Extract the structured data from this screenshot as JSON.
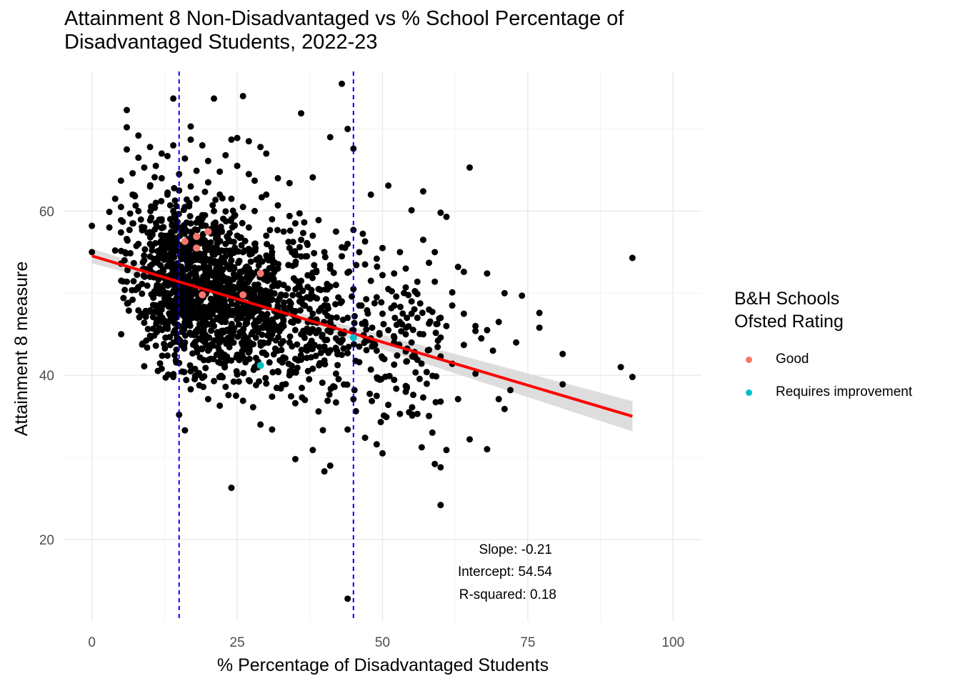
{
  "chart_data": {
    "type": "scatter",
    "title": "Attainment 8 Non-Disadvantaged vs % School Percentage of\nDisadvantaged Students, 2022-23",
    "xlabel": "% Percentage of Disadvantaged Students",
    "ylabel": "Attainment 8 measure",
    "xlim": [
      -5,
      105
    ],
    "ylim": [
      10,
      77
    ],
    "x_ticks": [
      "0",
      "25",
      "50",
      "75",
      "100"
    ],
    "y_ticks": [
      "20",
      "40",
      "60"
    ],
    "grid": true,
    "vlines": [
      15,
      45
    ],
    "regression": {
      "slope": -0.21,
      "intercept": 54.54,
      "x_range": [
        0,
        93
      ]
    },
    "annotations": [
      "Slope: -0.21",
      "Intercept: 54.54",
      "R-squared: 0.18"
    ],
    "legend": {
      "title": "B&H Schools\nOfsted Rating",
      "placement": "right",
      "entries": [
        {
          "name": "Good",
          "color": "#F8766D"
        },
        {
          "name": "Requires improvement",
          "color": "#00BFC4"
        }
      ]
    },
    "series": [
      {
        "name": "Good",
        "color": "#F8766D",
        "points": [
          [
            16,
            56.3
          ],
          [
            18,
            56.9
          ],
          [
            18,
            55.5
          ],
          [
            20,
            57.5
          ],
          [
            19,
            49.8
          ],
          [
            26,
            49.8
          ],
          [
            29,
            52.4
          ]
        ]
      },
      {
        "name": "Requires improvement",
        "color": "#00BFC4",
        "points": [
          [
            29,
            41.2
          ],
          [
            45,
            44.6
          ]
        ]
      }
    ],
    "background_points": [
      [
        0,
        58.2
      ],
      [
        0,
        55.0
      ],
      [
        5,
        60.5
      ],
      [
        6,
        72.3
      ],
      [
        6,
        70.2
      ],
      [
        8,
        69.2
      ],
      [
        14,
        73.7
      ],
      [
        17,
        70.3
      ],
      [
        17,
        68.7
      ],
      [
        21,
        73.7
      ],
      [
        24,
        68.7
      ],
      [
        25,
        68.9
      ],
      [
        26,
        74.0
      ],
      [
        27,
        68.5
      ],
      [
        29,
        67.8
      ],
      [
        30,
        67.0
      ],
      [
        36,
        71.9
      ],
      [
        41,
        69.0
      ],
      [
        43,
        75.5
      ],
      [
        44,
        70.0
      ],
      [
        45,
        67.6
      ],
      [
        38,
        64.1
      ],
      [
        34,
        63.4
      ],
      [
        48,
        62.0
      ],
      [
        51,
        63.1
      ],
      [
        57,
        62.4
      ],
      [
        65,
        65.3
      ],
      [
        55,
        60.1
      ],
      [
        60,
        59.8
      ],
      [
        61,
        59.3
      ],
      [
        93,
        54.3
      ],
      [
        81,
        42.6
      ],
      [
        81,
        38.9
      ],
      [
        91,
        41.0
      ],
      [
        93,
        39.8
      ],
      [
        77,
        47.6
      ],
      [
        77,
        45.8
      ],
      [
        74,
        49.7
      ],
      [
        71,
        50.0
      ],
      [
        68,
        52.4
      ],
      [
        72,
        38.2
      ],
      [
        71,
        35.9
      ],
      [
        70,
        37.1
      ],
      [
        65,
        32.2
      ],
      [
        68,
        31.0
      ],
      [
        61,
        30.9
      ],
      [
        59,
        29.2
      ],
      [
        60,
        28.8
      ],
      [
        60,
        24.2
      ],
      [
        44,
        12.8
      ],
      [
        24,
        26.3
      ],
      [
        35,
        29.8
      ],
      [
        40,
        28.3
      ],
      [
        41,
        29.0
      ],
      [
        16,
        33.3
      ],
      [
        15,
        35.2
      ],
      [
        29,
        34.0
      ],
      [
        31,
        33.4
      ],
      [
        38,
        30.9
      ],
      [
        44,
        33.4
      ],
      [
        47,
        32.4
      ],
      [
        49,
        31.6
      ],
      [
        50,
        30.5
      ],
      [
        53,
        35.3
      ],
      [
        56,
        35.3
      ],
      [
        9,
        41.1
      ],
      [
        12,
        40.8
      ],
      [
        14,
        39.8
      ],
      [
        17,
        38.3
      ],
      [
        20,
        37.1
      ],
      [
        22,
        36.3
      ],
      [
        26,
        36.9
      ],
      [
        31,
        37.4
      ],
      [
        35,
        36.6
      ],
      [
        39,
        35.6
      ],
      [
        42,
        36.7
      ],
      [
        45,
        37.1
      ],
      [
        49,
        37.5
      ],
      [
        51,
        36.4
      ],
      [
        54,
        38.0
      ],
      [
        57,
        37.3
      ],
      [
        60,
        36.8
      ],
      [
        63,
        37.1
      ],
      [
        66,
        40.2
      ],
      [
        62,
        41.4
      ],
      [
        64,
        43.7
      ],
      [
        66,
        45.4
      ],
      [
        58,
        46.3
      ],
      [
        55,
        47.5
      ],
      [
        60,
        44.6
      ],
      [
        59,
        51.4
      ],
      [
        63,
        53.2
      ],
      [
        64,
        52.6
      ],
      [
        62,
        50.1
      ],
      [
        58,
        53.7
      ],
      [
        52,
        52.4
      ],
      [
        54,
        50.7
      ],
      [
        56,
        49.9
      ],
      [
        50,
        52.2
      ],
      [
        47,
        56.3
      ],
      [
        49,
        54.2
      ],
      [
        45,
        57.7
      ],
      [
        43,
        55.6
      ],
      [
        41,
        53.4
      ],
      [
        39,
        58.9
      ],
      [
        37,
        56.1
      ],
      [
        34,
        59.4
      ],
      [
        32,
        60.7
      ],
      [
        30,
        62.0
      ],
      [
        27,
        64.5
      ],
      [
        23,
        66.8
      ],
      [
        20,
        66.1
      ],
      [
        18,
        64.9
      ],
      [
        16,
        66.4
      ],
      [
        13,
        66.7
      ],
      [
        11,
        65.5
      ],
      [
        9,
        65.3
      ],
      [
        7,
        64.6
      ],
      [
        5,
        63.7
      ],
      [
        4,
        61.5
      ],
      [
        3,
        59.9
      ],
      [
        3,
        58.0
      ],
      [
        5,
        57.4
      ],
      [
        6,
        56.6
      ],
      [
        4,
        55.2
      ],
      [
        5,
        53.6
      ],
      [
        6,
        51.4
      ],
      [
        7,
        49.2
      ],
      [
        8,
        47.9
      ],
      [
        9,
        46.4
      ],
      [
        10,
        44.8
      ],
      [
        11,
        43.6
      ],
      [
        13,
        42.4
      ],
      [
        15,
        41.5
      ],
      [
        17,
        40.5
      ],
      [
        19,
        39.7
      ],
      [
        21,
        39.3
      ],
      [
        23,
        38.6
      ],
      [
        25,
        40.1
      ],
      [
        27,
        39.4
      ],
      [
        28,
        41.0
      ],
      [
        30,
        39.0
      ],
      [
        32,
        40.5
      ],
      [
        34,
        40.0
      ],
      [
        36,
        41.9
      ],
      [
        38,
        40.8
      ],
      [
        40,
        41.8
      ],
      [
        42,
        40.2
      ],
      [
        44,
        42.7
      ],
      [
        46,
        41.6
      ],
      [
        48,
        40.7
      ],
      [
        50,
        42.1
      ],
      [
        52,
        41.3
      ],
      [
        54,
        42.9
      ],
      [
        56,
        41.9
      ],
      [
        58,
        43.1
      ],
      [
        60,
        42.3
      ],
      [
        7,
        58.5
      ],
      [
        8,
        56.0
      ],
      [
        9,
        54.0
      ],
      [
        10,
        52.0
      ],
      [
        11,
        50.0
      ],
      [
        12,
        48.0
      ],
      [
        13,
        46.0
      ],
      [
        14,
        44.0
      ],
      [
        7,
        62.0
      ],
      [
        8,
        60.0
      ],
      [
        9,
        58.0
      ],
      [
        10,
        56.0
      ],
      [
        11,
        54.0
      ],
      [
        12,
        52.0
      ],
      [
        13,
        50.0
      ],
      [
        14,
        48.0
      ],
      [
        15,
        46.0
      ],
      [
        16,
        44.0
      ],
      [
        10,
        63.0
      ],
      [
        11,
        61.0
      ],
      [
        12,
        59.0
      ],
      [
        13,
        57.0
      ],
      [
        14,
        55.0
      ],
      [
        15,
        53.0
      ],
      [
        16,
        51.0
      ],
      [
        17,
        49.0
      ],
      [
        18,
        47.0
      ],
      [
        19,
        45.0
      ],
      [
        20,
        43.0
      ],
      [
        12,
        64.0
      ],
      [
        13,
        62.0
      ],
      [
        14,
        60.0
      ],
      [
        15,
        58.0
      ],
      [
        16,
        56.0
      ],
      [
        17,
        54.0
      ],
      [
        18,
        52.0
      ],
      [
        19,
        50.0
      ],
      [
        20,
        48.0
      ],
      [
        21,
        46.0
      ],
      [
        22,
        44.0
      ],
      [
        23,
        42.0
      ],
      [
        15,
        62.5
      ],
      [
        16,
        60.5
      ],
      [
        17,
        58.5
      ],
      [
        18,
        56.5
      ],
      [
        19,
        54.5
      ],
      [
        20,
        52.5
      ],
      [
        21,
        50.5
      ],
      [
        22,
        48.5
      ],
      [
        23,
        46.5
      ],
      [
        24,
        44.5
      ],
      [
        25,
        42.5
      ],
      [
        18,
        61.5
      ],
      [
        19,
        59.5
      ],
      [
        20,
        57.5
      ],
      [
        21,
        55.5
      ],
      [
        22,
        53.5
      ],
      [
        23,
        51.5
      ],
      [
        24,
        49.5
      ],
      [
        25,
        47.5
      ],
      [
        26,
        45.5
      ],
      [
        27,
        43.5
      ],
      [
        21,
        60.0
      ],
      [
        22,
        58.0
      ],
      [
        23,
        56.0
      ],
      [
        24,
        54.0
      ],
      [
        25,
        52.0
      ],
      [
        26,
        50.0
      ],
      [
        27,
        48.0
      ],
      [
        28,
        46.0
      ],
      [
        29,
        44.0
      ],
      [
        30,
        42.5
      ],
      [
        24,
        59.0
      ],
      [
        25,
        57.0
      ],
      [
        26,
        55.0
      ],
      [
        27,
        53.0
      ],
      [
        28,
        51.0
      ],
      [
        29,
        49.0
      ],
      [
        30,
        47.0
      ],
      [
        31,
        45.0
      ],
      [
        32,
        43.0
      ],
      [
        27,
        58.0
      ],
      [
        28,
        56.0
      ],
      [
        29,
        54.0
      ],
      [
        30,
        52.0
      ],
      [
        31,
        50.0
      ],
      [
        32,
        48.0
      ],
      [
        33,
        46.0
      ],
      [
        34,
        44.0
      ],
      [
        35,
        42.0
      ],
      [
        30,
        57.0
      ],
      [
        31,
        55.0
      ],
      [
        32,
        53.0
      ],
      [
        33,
        51.0
      ],
      [
        34,
        49.0
      ],
      [
        35,
        47.0
      ],
      [
        36,
        45.0
      ],
      [
        37,
        43.0
      ],
      [
        38,
        46.5
      ],
      [
        33,
        57.5
      ],
      [
        34,
        55.5
      ],
      [
        35,
        53.5
      ],
      [
        36,
        51.5
      ],
      [
        37,
        49.5
      ],
      [
        38,
        47.5
      ],
      [
        39,
        45.5
      ],
      [
        40,
        43.5
      ],
      [
        36,
        56.5
      ],
      [
        37,
        54.5
      ],
      [
        38,
        52.5
      ],
      [
        39,
        50.5
      ],
      [
        40,
        48.5
      ],
      [
        41,
        46.5
      ],
      [
        42,
        44.5
      ],
      [
        43,
        42.5
      ],
      [
        40,
        55.0
      ],
      [
        41,
        53.0
      ],
      [
        42,
        51.0
      ],
      [
        43,
        49.0
      ],
      [
        44,
        47.0
      ],
      [
        45,
        45.5
      ],
      [
        46,
        43.5
      ],
      [
        43,
        54.5
      ],
      [
        44,
        52.5
      ],
      [
        45,
        50.5
      ],
      [
        46,
        48.5
      ],
      [
        47,
        46.5
      ],
      [
        48,
        44.5
      ],
      [
        49,
        43.0
      ],
      [
        47,
        53.5
      ],
      [
        48,
        51.5
      ],
      [
        49,
        49.5
      ],
      [
        50,
        47.5
      ],
      [
        51,
        45.5
      ],
      [
        52,
        44.0
      ],
      [
        50,
        55.5
      ],
      [
        51,
        50.5
      ],
      [
        52,
        48.5
      ],
      [
        53,
        46.5
      ],
      [
        54,
        45.0
      ],
      [
        55,
        44.0
      ],
      [
        53,
        55.0
      ],
      [
        54,
        53.0
      ],
      [
        55,
        49.0
      ],
      [
        56,
        47.0
      ],
      [
        57,
        45.0
      ],
      [
        58,
        48.0
      ],
      [
        60,
        47.0
      ],
      [
        61,
        46.0
      ],
      [
        62,
        48.5
      ],
      [
        64,
        47.5
      ],
      [
        66,
        46.0
      ],
      [
        67,
        44.5
      ],
      [
        68,
        45.5
      ],
      [
        70,
        46.5
      ],
      [
        69,
        43.0
      ],
      [
        73,
        44.0
      ],
      [
        57,
        56.5
      ],
      [
        59,
        55.0
      ],
      [
        20,
        63.5
      ],
      [
        22,
        62.0
      ],
      [
        24,
        61.5
      ],
      [
        26,
        60.5
      ],
      [
        28,
        60.0
      ],
      [
        31,
        59.0
      ],
      [
        35,
        58.5
      ],
      [
        38,
        57.0
      ],
      [
        42,
        57.5
      ],
      [
        44,
        56.0
      ],
      [
        46,
        55.0
      ],
      [
        6,
        67.5
      ],
      [
        8,
        66.5
      ],
      [
        10,
        67.8
      ],
      [
        12,
        67.0
      ],
      [
        14,
        68.0
      ],
      [
        19,
        68.0
      ],
      [
        22,
        64.8
      ],
      [
        25,
        65.5
      ],
      [
        28,
        63.7
      ],
      [
        32,
        64.0
      ],
      [
        15,
        64.5
      ],
      [
        17,
        63.0
      ]
    ]
  }
}
